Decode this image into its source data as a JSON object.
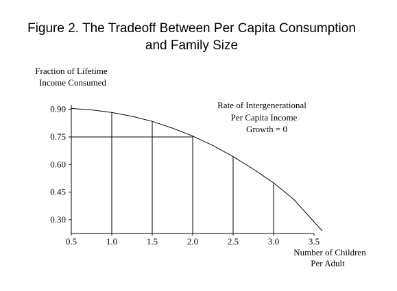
{
  "chart_data": {
    "type": "line",
    "title_lines": [
      "Figure 2.  The Tradeoff Between Per Capita Consumption",
      "and Family Size"
    ],
    "ylabel_lines": [
      "Fraction of Lifetime",
      "Income Consumed"
    ],
    "xlabel_lines": [
      "Number of Children",
      "Per Adult"
    ],
    "annotation_lines": [
      "Rate of Intergenerational",
      "Per Capita Income",
      "Growth = 0"
    ],
    "xlim": [
      0.5,
      3.5
    ],
    "ylim": [
      0.225,
      0.925
    ],
    "x_ticks": [
      {
        "value": 0.5,
        "label": "0.5"
      },
      {
        "value": 1.0,
        "label": "1.0"
      },
      {
        "value": 1.5,
        "label": "1.5"
      },
      {
        "value": 2.0,
        "label": "2.0"
      },
      {
        "value": 2.5,
        "label": "2.5"
      },
      {
        "value": 3.0,
        "label": "3.0"
      },
      {
        "value": 3.5,
        "label": "3.5"
      }
    ],
    "y_ticks": [
      {
        "value": 0.9,
        "label": "0.90"
      },
      {
        "value": 0.75,
        "label": "0.75"
      },
      {
        "value": 0.6,
        "label": "0.60"
      },
      {
        "value": 0.45,
        "label": "0.45"
      },
      {
        "value": 0.3,
        "label": "0.30"
      }
    ],
    "series": [
      {
        "x": [
          0.5,
          0.75,
          1.0,
          1.25,
          1.5,
          1.75,
          2.0,
          2.25,
          2.5,
          2.75,
          3.0,
          3.25,
          3.6
        ],
        "y": [
          0.905,
          0.897,
          0.883,
          0.862,
          0.835,
          0.798,
          0.755,
          0.703,
          0.643,
          0.575,
          0.5,
          0.41,
          0.24
        ]
      }
    ],
    "drop_lines": [
      {
        "x": 1.0,
        "y": 0.883
      },
      {
        "x": 1.5,
        "y": 0.835
      },
      {
        "x": 2.0,
        "y": 0.755
      },
      {
        "x": 2.5,
        "y": 0.643
      },
      {
        "x": 3.0,
        "y": 0.5
      }
    ],
    "reference_line": {
      "y": 0.75,
      "x_to": 2.0
    },
    "grid": false
  }
}
